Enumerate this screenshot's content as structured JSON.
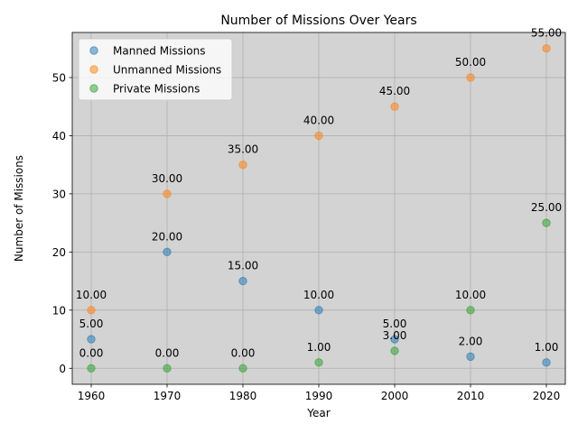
{
  "chart_data": {
    "type": "scatter",
    "title": "Number of Missions Over Years",
    "xlabel": "Year",
    "ylabel": "Number of Missions",
    "x": [
      1960,
      1970,
      1980,
      1990,
      2000,
      2010,
      2020
    ],
    "xticks": [
      "1960",
      "1970",
      "1980",
      "1990",
      "2000",
      "2010",
      "2020"
    ],
    "yticks": [
      "0",
      "10",
      "20",
      "30",
      "40",
      "50"
    ],
    "xlim": [
      1957.5,
      2022.5
    ],
    "ylim": [
      -2.75,
      57.75
    ],
    "grid": true,
    "legend_position": "top-left",
    "series": [
      {
        "name": "Manned Missions",
        "color": "#1f77b4",
        "values": [
          5,
          20,
          15,
          10,
          5,
          2,
          1
        ]
      },
      {
        "name": "Unmanned Missions",
        "color": "#ff7f0e",
        "values": [
          10,
          30,
          35,
          40,
          45,
          50,
          55
        ]
      },
      {
        "name": "Private Missions",
        "color": "#2ca02c",
        "values": [
          0,
          0,
          0,
          1,
          3,
          10,
          25
        ]
      }
    ],
    "data_labels": [
      {
        "x": 1960,
        "y": 5,
        "text": "5.00"
      },
      {
        "x": 1970,
        "y": 20,
        "text": "20.00"
      },
      {
        "x": 1980,
        "y": 15,
        "text": "15.00"
      },
      {
        "x": 1990,
        "y": 10,
        "text": "10.00"
      },
      {
        "x": 2000,
        "y": 5,
        "text": "5.00"
      },
      {
        "x": 2010,
        "y": 2,
        "text": "2.00"
      },
      {
        "x": 2020,
        "y": 1,
        "text": "1.00"
      },
      {
        "x": 1960,
        "y": 10,
        "text": "10.00"
      },
      {
        "x": 1970,
        "y": 30,
        "text": "30.00"
      },
      {
        "x": 1980,
        "y": 35,
        "text": "35.00"
      },
      {
        "x": 1990,
        "y": 40,
        "text": "40.00"
      },
      {
        "x": 2000,
        "y": 45,
        "text": "45.00"
      },
      {
        "x": 2010,
        "y": 50,
        "text": "50.00"
      },
      {
        "x": 2020,
        "y": 55,
        "text": "55.00"
      },
      {
        "x": 1960,
        "y": 0,
        "text": "0.00"
      },
      {
        "x": 1970,
        "y": 0,
        "text": "0.00"
      },
      {
        "x": 1980,
        "y": 0,
        "text": "0.00"
      },
      {
        "x": 1990,
        "y": 1,
        "text": "1.00"
      },
      {
        "x": 2000,
        "y": 3,
        "text": "3.00"
      },
      {
        "x": 2010,
        "y": 10,
        "text": "10.00"
      },
      {
        "x": 2020,
        "y": 25,
        "text": "25.00"
      }
    ]
  }
}
